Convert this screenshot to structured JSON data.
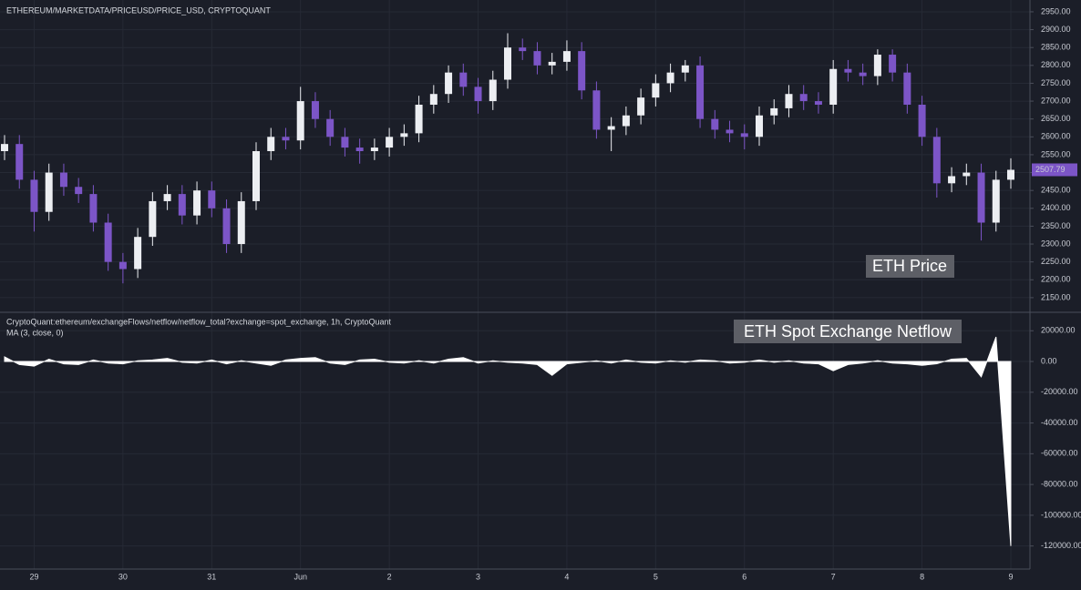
{
  "chart_data": [
    {
      "type": "candlestick",
      "title": "ETHEREUM/MARKETDATA/PRICEUSD/PRICE_USD, CRYPTOQUANT",
      "annotation": "ETH Price",
      "categories": [
        null,
        null,
        "29",
        null,
        null,
        null,
        null,
        null,
        "30",
        null,
        null,
        null,
        null,
        null,
        "31",
        null,
        null,
        null,
        null,
        null,
        "Jun",
        null,
        null,
        null,
        null,
        null,
        "2",
        null,
        null,
        null,
        null,
        null,
        "3",
        null,
        null,
        null,
        null,
        null,
        "4",
        null,
        null,
        null,
        null,
        null,
        "5",
        null,
        null,
        null,
        null,
        null,
        "6",
        null,
        null,
        null,
        null,
        null,
        "7",
        null,
        null,
        null,
        null,
        null,
        "8",
        null,
        null,
        null,
        null,
        null,
        "9"
      ],
      "open": [
        2560,
        2580,
        2480,
        2390,
        2500,
        2460,
        2440,
        2360,
        2250,
        2230,
        2320,
        2420,
        2440,
        2380,
        2450,
        2400,
        2300,
        2420,
        2560,
        2600,
        2590,
        2700,
        2650,
        2600,
        2570,
        2560,
        2570,
        2600,
        2610,
        2690,
        2720,
        2780,
        2740,
        2700,
        2760,
        2850,
        2840,
        2800,
        2810,
        2840,
        2730,
        2620,
        2630,
        2660,
        2710,
        2750,
        2780,
        2800,
        2650,
        2620,
        2610,
        2600,
        2660,
        2680,
        2720,
        2700,
        2690,
        2790,
        2780,
        2770,
        2830,
        2780,
        2690,
        2600,
        2470,
        2490,
        2500,
        2360,
        2480
      ],
      "high": [
        2605,
        2605,
        2505,
        2525,
        2525,
        2485,
        2465,
        2385,
        2275,
        2345,
        2445,
        2465,
        2465,
        2475,
        2475,
        2425,
        2445,
        2585,
        2625,
        2625,
        2740,
        2725,
        2675,
        2625,
        2595,
        2595,
        2625,
        2635,
        2715,
        2745,
        2800,
        2805,
        2765,
        2785,
        2890,
        2875,
        2865,
        2835,
        2870,
        2865,
        2755,
        2655,
        2685,
        2735,
        2775,
        2805,
        2815,
        2825,
        2675,
        2645,
        2635,
        2685,
        2705,
        2745,
        2745,
        2725,
        2815,
        2815,
        2805,
        2845,
        2845,
        2805,
        2715,
        2625,
        2515,
        2525,
        2525,
        2505,
        2540
      ],
      "low": [
        2535,
        2455,
        2335,
        2365,
        2435,
        2415,
        2335,
        2225,
        2190,
        2205,
        2295,
        2395,
        2355,
        2355,
        2375,
        2275,
        2275,
        2395,
        2535,
        2565,
        2565,
        2625,
        2575,
        2545,
        2525,
        2535,
        2545,
        2575,
        2585,
        2665,
        2695,
        2715,
        2665,
        2675,
        2735,
        2815,
        2775,
        2775,
        2785,
        2705,
        2595,
        2560,
        2605,
        2635,
        2685,
        2725,
        2755,
        2625,
        2595,
        2585,
        2565,
        2575,
        2635,
        2655,
        2675,
        2665,
        2665,
        2755,
        2745,
        2745,
        2755,
        2665,
        2575,
        2430,
        2445,
        2465,
        2310,
        2335,
        2455
      ],
      "close": [
        2580,
        2480,
        2390,
        2500,
        2460,
        2440,
        2360,
        2250,
        2230,
        2320,
        2420,
        2440,
        2380,
        2450,
        2400,
        2300,
        2420,
        2560,
        2600,
        2590,
        2700,
        2650,
        2600,
        2570,
        2560,
        2570,
        2600,
        2610,
        2690,
        2720,
        2780,
        2740,
        2700,
        2760,
        2850,
        2840,
        2800,
        2810,
        2840,
        2730,
        2620,
        2630,
        2660,
        2710,
        2750,
        2780,
        2800,
        2650,
        2620,
        2610,
        2600,
        2660,
        2680,
        2720,
        2700,
        2690,
        2790,
        2780,
        2770,
        2830,
        2780,
        2690,
        2600,
        2470,
        2490,
        2500,
        2360,
        2480,
        2507.79
      ],
      "up_color": "#eceef2",
      "down_color": "#7c55c7",
      "last_value": 2507.79,
      "ylim": [
        2109,
        2983
      ],
      "yticks": [
        {
          "value": 2950,
          "label": "2950.00"
        },
        {
          "value": 2900,
          "label": "2900.00"
        },
        {
          "value": 2850,
          "label": "2850.00"
        },
        {
          "value": 2800,
          "label": "2800.00"
        },
        {
          "value": 2750,
          "label": "2750.00"
        },
        {
          "value": 2700,
          "label": "2700.00"
        },
        {
          "value": 2650,
          "label": "2650.00"
        },
        {
          "value": 2600,
          "label": "2600.00"
        },
        {
          "value": 2550,
          "label": "2550.00"
        },
        {
          "value": 2500,
          "label": "2500.00"
        },
        {
          "value": 2450,
          "label": "2450.00"
        },
        {
          "value": 2400,
          "label": "2400.00"
        },
        {
          "value": 2350,
          "label": "2350.00"
        },
        {
          "value": 2300,
          "label": "2300.00"
        },
        {
          "value": 2250,
          "label": "2250.00"
        },
        {
          "value": 2200,
          "label": "2200.00"
        },
        {
          "value": 2150,
          "label": "2150.00"
        }
      ],
      "grid": true
    },
    {
      "type": "area",
      "title": "CryptoQuant:ethereum/exchangeFlows/netflow/netflow_total?exchange=spot_exchange, 1h, CryptoQuant",
      "subtitle": "MA (3, close, 0)",
      "annotation": "ETH Spot Exchange Netflow",
      "values": [
        3000,
        -2000,
        -3000,
        1500,
        -1500,
        -2000,
        1000,
        -1000,
        -1500,
        500,
        1000,
        2000,
        -500,
        -1000,
        1000,
        -1500,
        500,
        -1000,
        -2500,
        1000,
        2000,
        2500,
        -1000,
        -2000,
        1000,
        1500,
        -500,
        -1000,
        500,
        -1000,
        1500,
        2500,
        -1000,
        500,
        -500,
        -1000,
        -2000,
        -9000,
        -1500,
        -500,
        500,
        -1000,
        1000,
        -500,
        -1000,
        500,
        -500,
        1000,
        500,
        -1000,
        -500,
        1000,
        -500,
        500,
        -1000,
        -1500,
        -6000,
        -2000,
        -1000,
        500,
        -1000,
        -1500,
        -2500,
        -1500,
        1500,
        2000,
        -10000,
        16000,
        -120000
      ],
      "color": "#ffffff",
      "ylim": [
        -135000,
        32000
      ],
      "yticks": [
        {
          "value": 20000,
          "label": "20000.00"
        },
        {
          "value": 0,
          "label": "0.00"
        },
        {
          "value": -20000,
          "label": "-20000.00"
        },
        {
          "value": -40000,
          "label": "-40000.00"
        },
        {
          "value": -60000,
          "label": "-60000.00"
        },
        {
          "value": -80000,
          "label": "-80000.00"
        },
        {
          "value": -100000,
          "label": "-100000.00"
        },
        {
          "value": -120000,
          "label": "-120000.00"
        }
      ],
      "grid": true
    }
  ]
}
